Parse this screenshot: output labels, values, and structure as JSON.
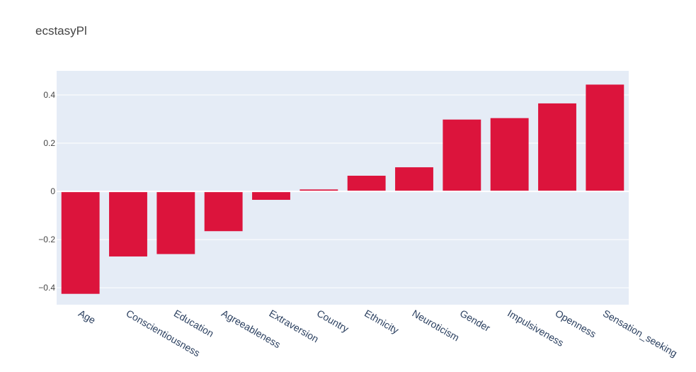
{
  "chart_data": {
    "type": "bar",
    "title": "ecstasyPl",
    "xlabel": "",
    "ylabel": "",
    "categories": [
      "Age",
      "Conscientiousness",
      "Education",
      "Agreeableness",
      "Extraversion",
      "Country",
      "Ethnicity",
      "Neuroticism",
      "Gender",
      "Impulsiveness",
      "Openness",
      "Sensation_seeking"
    ],
    "values": [
      -0.425,
      -0.27,
      -0.26,
      -0.165,
      -0.035,
      0.008,
      0.065,
      0.1,
      0.298,
      0.304,
      0.365,
      0.443
    ],
    "ylim": [
      -0.47,
      0.5
    ],
    "yticks": [
      -0.4,
      -0.2,
      0,
      0.2,
      0.4
    ],
    "ytick_labels": [
      "−0.4",
      "−0.2",
      "0",
      "0.2",
      "0.4"
    ],
    "grid": true,
    "colors": {
      "bar": "#dc143c",
      "plot_bg": "#e5ecf6",
      "grid": "#ffffff"
    }
  }
}
